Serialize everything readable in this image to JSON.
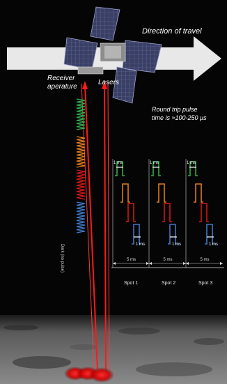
{
  "labels": {
    "direction": "Direction of travel",
    "receiver": "Receiver aperature",
    "lasers": "Lasers",
    "round_trip_line1": "Round trip pulse",
    "round_trip_line2": "time is ≈100-250 µs",
    "pulse_width": "1 ms",
    "spacing": "5 ms",
    "vertical_note": "Dark (no pulse)",
    "spots": [
      "Spot 1",
      "Spot 2",
      "Spot 3"
    ]
  },
  "colors": {
    "green": "#2fae4a",
    "orange": "#e07b1a",
    "red": "#d01818",
    "blue": "#3c78c8",
    "laser": "#ff1a1a",
    "arrow": "#e8e8e8"
  }
}
